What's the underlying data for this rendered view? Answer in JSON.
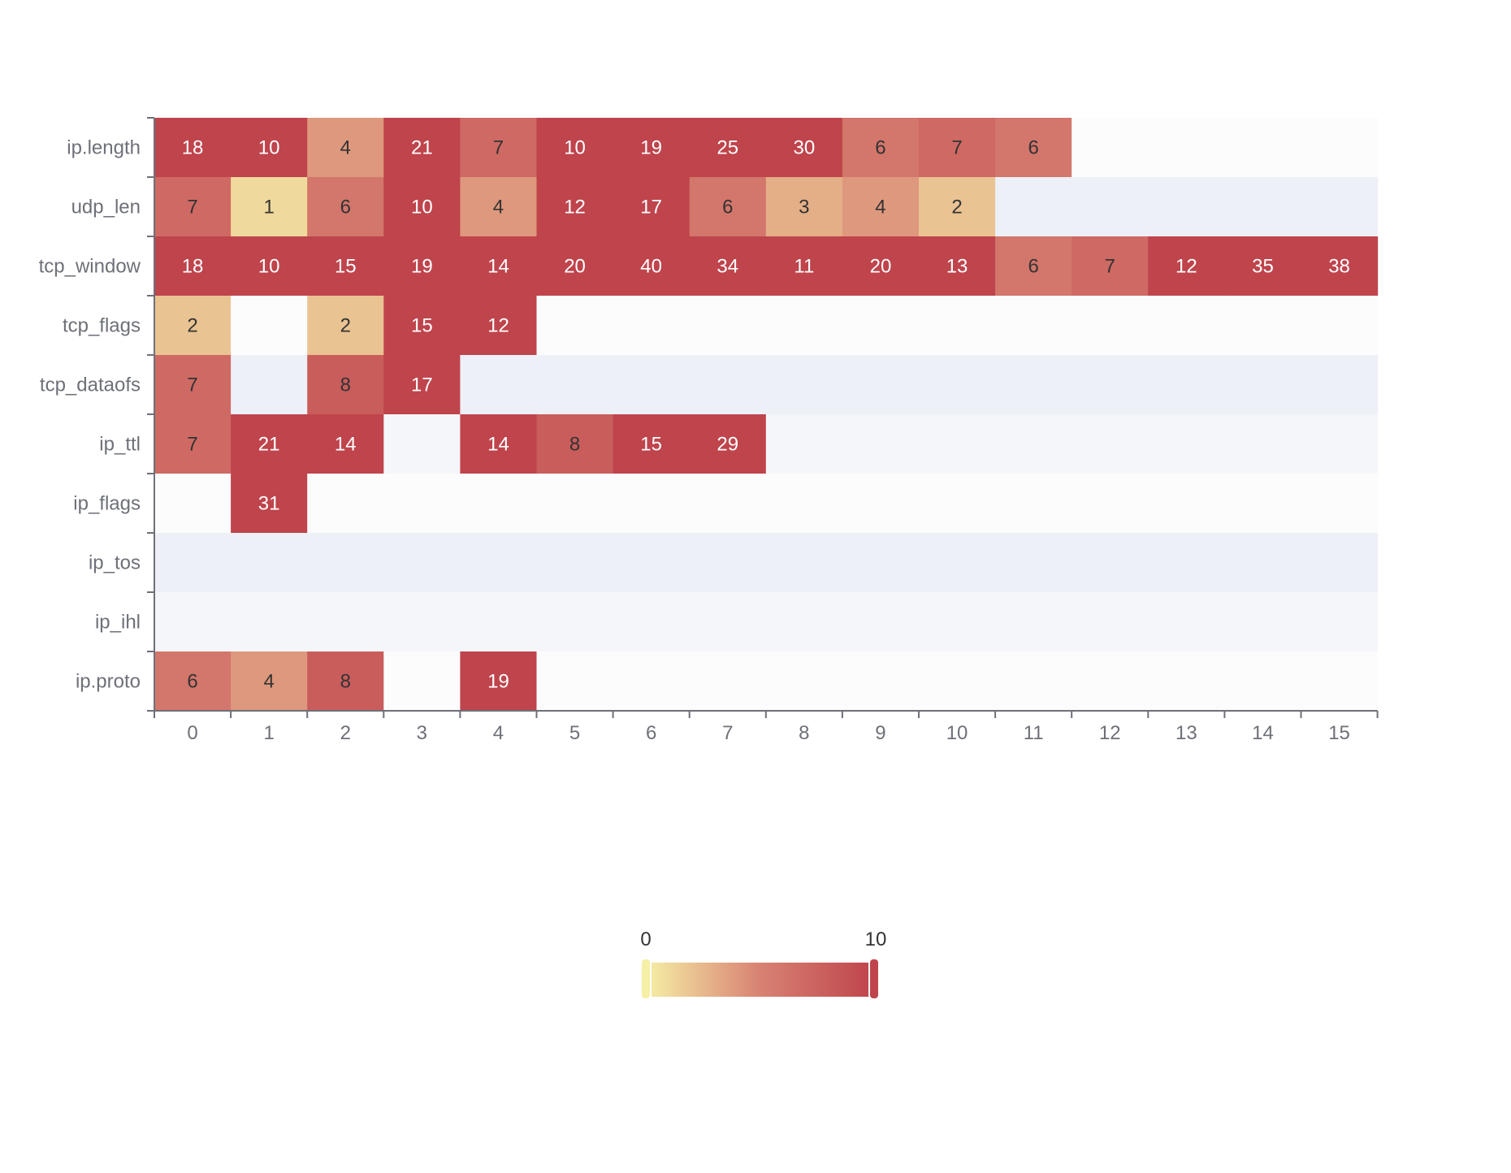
{
  "chart_data": {
    "type": "heatmap",
    "title": "",
    "xlabel": "",
    "ylabel": "",
    "x_categories": [
      "0",
      "1",
      "2",
      "3",
      "4",
      "5",
      "6",
      "7",
      "8",
      "9",
      "10",
      "11",
      "12",
      "13",
      "14",
      "15"
    ],
    "y_categories": [
      "ip.length",
      "udp_len",
      "tcp_window",
      "tcp_flags",
      "tcp_dataofs",
      "ip_ttl",
      "ip_flags",
      "ip_tos",
      "ip_ihl",
      "ip.proto"
    ],
    "values": [
      [
        18,
        10,
        4,
        21,
        7,
        10,
        19,
        25,
        30,
        6,
        7,
        6,
        null,
        null,
        null,
        null
      ],
      [
        7,
        1,
        6,
        10,
        4,
        12,
        17,
        6,
        3,
        4,
        2,
        null,
        null,
        null,
        null,
        null
      ],
      [
        18,
        10,
        15,
        19,
        14,
        20,
        40,
        34,
        11,
        20,
        13,
        6,
        7,
        12,
        35,
        38
      ],
      [
        2,
        null,
        2,
        15,
        12,
        null,
        null,
        null,
        null,
        null,
        null,
        null,
        null,
        null,
        null,
        null
      ],
      [
        7,
        null,
        8,
        17,
        null,
        null,
        null,
        null,
        null,
        null,
        null,
        null,
        null,
        null,
        null,
        null
      ],
      [
        7,
        21,
        14,
        null,
        14,
        8,
        15,
        29,
        null,
        null,
        null,
        null,
        null,
        null,
        null,
        null
      ],
      [
        null,
        31,
        null,
        null,
        null,
        null,
        null,
        null,
        null,
        null,
        null,
        null,
        null,
        null,
        null,
        null
      ],
      [
        null,
        null,
        null,
        null,
        null,
        null,
        null,
        null,
        null,
        null,
        null,
        null,
        null,
        null,
        null,
        null
      ],
      [
        null,
        null,
        null,
        null,
        null,
        null,
        null,
        null,
        null,
        null,
        null,
        null,
        null,
        null,
        null,
        null
      ],
      [
        6,
        4,
        8,
        null,
        19,
        null,
        null,
        null,
        null,
        null,
        null,
        null,
        null,
        null,
        null,
        null
      ]
    ],
    "color_scale": {
      "min": 0,
      "max": 10,
      "min_label": "0",
      "max_label": "10",
      "colors": [
        "#f6efa6",
        "#d88273",
        "#bf444c"
      ]
    },
    "empty_cell_colors": [
      "#fcfcfd",
      "#f5f6fa",
      "#eef0f7"
    ],
    "text_color_dark": "#333333",
    "text_color_light": "#ffffff",
    "legend_position": "bottom-center"
  }
}
